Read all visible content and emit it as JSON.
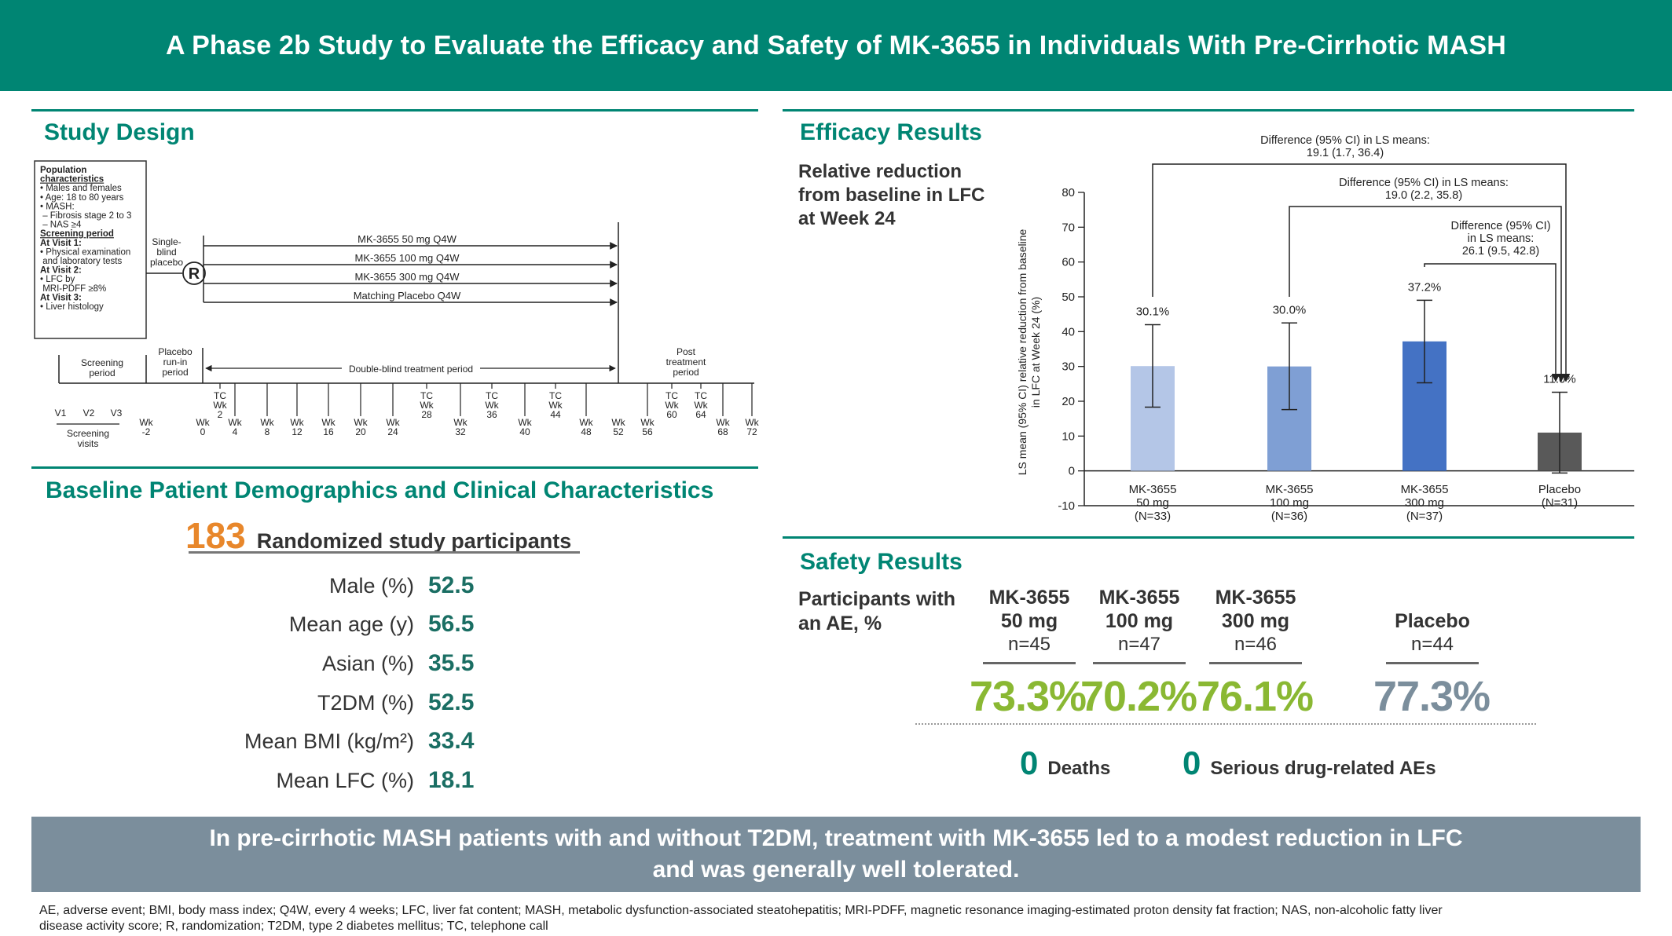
{
  "banner": {
    "title": "A Phase 2b Study to Evaluate the Efficacy and Safety of MK-3655 in Individuals With Pre-Cirrhotic MASH"
  },
  "colors": {
    "teal": "#008573",
    "orange": "#e8872b",
    "green": "#8ab833",
    "slate": "#7b8e9c",
    "bar1": "#b4c6e7",
    "bar2": "#7f9fd4",
    "bar3": "#4472c4",
    "bar4": "#595959"
  },
  "study_design": {
    "title": "Study Design",
    "population_box": {
      "heading1": "Population",
      "heading2": "characteristics",
      "items": [
        "• Males and females",
        "• Age: 18 to 80 years",
        "• MASH:",
        "  – Fibrosis stage 2 to 3",
        "  – NAS ≥4"
      ],
      "screening_heading": "Screening period",
      "visit1": "At Visit 1:",
      "visit1_items": [
        "• Physical examination",
        "  and laboratory tests"
      ],
      "visit2": "At Visit 2:",
      "visit2_items": [
        "• LFC by",
        "  MRI-PDFF ≥8%"
      ],
      "visit3": "At Visit 3:",
      "visit3_items": [
        "• Liver histology"
      ]
    },
    "single_blind": [
      "Single-",
      "blind",
      "placebo"
    ],
    "randomization": "R",
    "arms": [
      "MK-3655 50 mg Q4W",
      "MK-3655 100 mg Q4W",
      "MK-3655 300 mg Q4W",
      "Matching Placebo Q4W"
    ],
    "periods": {
      "screening": [
        "Screening",
        "period"
      ],
      "runin": [
        "Placebo",
        "run-in",
        "period"
      ],
      "double_blind": "Double-blind treatment period",
      "post": [
        "Post",
        "treatment",
        "period"
      ]
    },
    "visits": [
      "V1",
      "V2",
      "V3"
    ],
    "screening_visits": [
      "Screening",
      "visits"
    ],
    "tc": [
      {
        "l": [
          "TC",
          "Wk",
          "2"
        ]
      },
      {
        "l": [
          "TC",
          "Wk",
          "28"
        ]
      },
      {
        "l": [
          "TC",
          "Wk",
          "36"
        ]
      },
      {
        "l": [
          "TC",
          "Wk",
          "44"
        ]
      },
      {
        "l": [
          "TC",
          "Wk",
          "60"
        ]
      },
      {
        "l": [
          "TC",
          "Wk",
          "64"
        ]
      }
    ],
    "weeks": [
      {
        "l": [
          "Wk",
          "-2"
        ]
      },
      {
        "l": [
          "Wk",
          "0"
        ]
      },
      {
        "l": [
          "Wk",
          "4"
        ]
      },
      {
        "l": [
          "Wk",
          "8"
        ]
      },
      {
        "l": [
          "Wk",
          "12"
        ]
      },
      {
        "l": [
          "Wk",
          "16"
        ]
      },
      {
        "l": [
          "Wk",
          "20"
        ]
      },
      {
        "l": [
          "Wk",
          "24"
        ]
      },
      {
        "l": [
          "Wk",
          "32"
        ]
      },
      {
        "l": [
          "Wk",
          "40"
        ]
      },
      {
        "l": [
          "Wk",
          "48"
        ]
      },
      {
        "l": [
          "Wk",
          "52"
        ]
      },
      {
        "l": [
          "Wk",
          "56"
        ]
      },
      {
        "l": [
          "Wk",
          "68"
        ]
      },
      {
        "l": [
          "Wk",
          "72"
        ]
      }
    ]
  },
  "demographics": {
    "title": "Baseline Patient Demographics and Clinical Characteristics",
    "randomized_count": "183",
    "randomized_label": "Randomized study participants",
    "rows": [
      {
        "label": "Male (%)",
        "value": "52.5"
      },
      {
        "label": "Mean age (y)",
        "value": "56.5"
      },
      {
        "label": "Asian (%)",
        "value": "35.5"
      },
      {
        "label": "T2DM (%)",
        "value": "52.5"
      },
      {
        "label": "Mean BMI (kg/m²)",
        "value": "33.4"
      },
      {
        "label": "Mean LFC (%)",
        "value": "18.1"
      }
    ]
  },
  "efficacy": {
    "title": "Efficacy Results",
    "subtitle": "Relative reduction from baseline in LFC at Week 24",
    "comparisons": [
      {
        "text": [
          "Difference (95% CI) in LS means:",
          "19.1 (1.7, 36.4)"
        ]
      },
      {
        "text": [
          "Difference (95% CI) in LS means:",
          "19.0 (2.2, 35.8)"
        ]
      },
      {
        "text": [
          "Difference (95% CI)",
          "in LS means:",
          "26.1 (9.5, 42.8)"
        ]
      }
    ]
  },
  "chart_data": {
    "type": "bar",
    "ylabel": "LS mean (95% CI) relative reduction from baseline in LFC at Week 24 (%)",
    "ylim": [
      -10,
      80
    ],
    "yticks": [
      -10,
      0,
      10,
      20,
      30,
      40,
      50,
      60,
      70,
      80
    ],
    "categories": [
      [
        "MK-3655",
        "50 mg",
        "(N=33)"
      ],
      [
        "MK-3655",
        "100 mg",
        "(N=36)"
      ],
      [
        "MK-3655",
        "300 mg",
        "(N=37)"
      ],
      [
        "Placebo",
        "(N=31)"
      ]
    ],
    "values": [
      30.1,
      30.0,
      37.2,
      11.0
    ],
    "ci_low": [
      18.3,
      17.6,
      25.3,
      -0.6
    ],
    "ci_high": [
      42.0,
      42.5,
      49.0,
      22.6
    ],
    "labels": [
      "30.1%",
      "30.0%",
      "37.2%",
      "11.0%"
    ]
  },
  "safety": {
    "title": "Safety Results",
    "subtitle": "Participants with an AE, %",
    "arms": [
      {
        "name": [
          "MK-3655",
          "50 mg"
        ],
        "n": "n=45",
        "pct": "73.3%"
      },
      {
        "name": [
          "MK-3655",
          "100 mg"
        ],
        "n": "n=47",
        "pct": "70.2%"
      },
      {
        "name": [
          "MK-3655",
          "300 mg"
        ],
        "n": "n=46",
        "pct": "76.1%"
      },
      {
        "name": [
          "Placebo"
        ],
        "n": "n=44",
        "pct": "77.3%"
      }
    ],
    "deaths_count": "0",
    "deaths_label": "Deaths",
    "sae_count": "0",
    "sae_label": "Serious drug-related AEs"
  },
  "conclusion": {
    "line1": "In pre-cirrhotic MASH patients with and without T2DM, treatment with MK-3655 led to a modest reduction in LFC",
    "line2": "and was generally well tolerated."
  },
  "footnote": {
    "line1": "AE, adverse event; BMI, body mass index; Q4W, every 4 weeks; LFC, liver fat content; MASH, metabolic dysfunction-associated steatohepatitis; MRI-PDFF, magnetic resonance imaging-estimated proton density fat fraction; NAS, non-alcoholic fatty liver",
    "line2": "disease activity score; R, randomization; T2DM, type 2 diabetes mellitus; TC, telephone call"
  }
}
